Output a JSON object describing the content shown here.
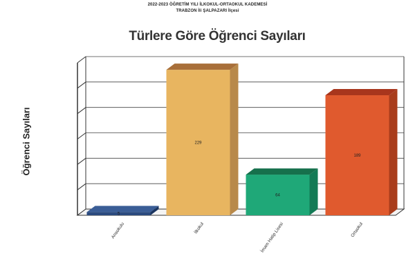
{
  "header": {
    "line1": "2022-2023 ÖĞRETİM YILI İLKOKUL-ORTAOKUL KADEMESİ",
    "line2": "TRABZON İli ŞALPAZARI İlçesi"
  },
  "chart_data": {
    "type": "bar",
    "title": "Türlere Göre Öğrenci Sayıları",
    "xlabel": "",
    "ylabel": "Öğrenci Sayıları",
    "categories": [
      "Anaokulu",
      "İlkokul",
      "İmam Hatip Lisesi",
      "Ortaokul"
    ],
    "values": [
      5,
      229,
      64,
      189
    ],
    "value_labels": [
      "5",
      "229",
      "64",
      "189"
    ],
    "ylim": [
      0,
      240
    ],
    "grid": true,
    "legend": "none",
    "colors": [
      "#2b4a7e",
      "#e8b560",
      "#1fa878",
      "#e05a2e"
    ],
    "side_colors": [
      "#1b3560",
      "#b8894a",
      "#137a55",
      "#a93d1c"
    ],
    "top_colors": [
      "#3a5d96",
      "#a86f3a",
      "#16704c",
      "#a8361d"
    ]
  }
}
